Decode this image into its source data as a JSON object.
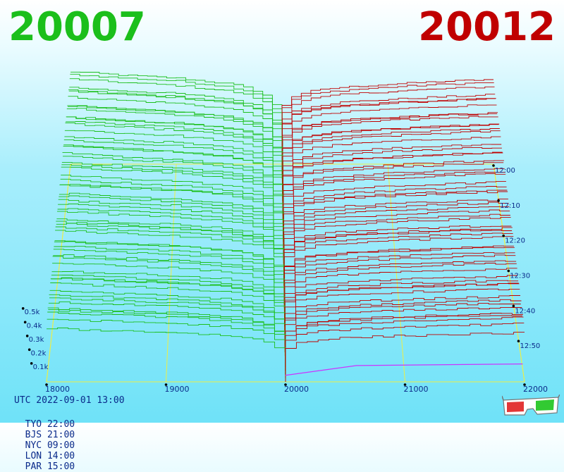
{
  "chart_data": {
    "type": "line",
    "title_left": "20007",
    "title_right": "20012",
    "colors": {
      "bid": "#1bbf1b",
      "ask": "#c00000",
      "spread": "#cc33ff",
      "grid": "#eeee44"
    },
    "x_ticks": [
      "18000",
      "19000",
      "20000",
      "21000",
      "22000"
    ],
    "depth_ticks": [
      "0.1k",
      "0.2k",
      "0.3k",
      "0.4k",
      "0.5k"
    ],
    "time_ticks": [
      "12:00",
      "12:10",
      "12:20",
      "12:30",
      "12:40",
      "12:50"
    ],
    "xlim": [
      18000,
      22000
    ],
    "depth_lim": [
      0,
      500
    ],
    "time_range": [
      "12:00",
      "12:58"
    ],
    "series": [
      {
        "side": "bid",
        "x": [
          18000,
          18500,
          19000,
          19500,
          19700,
          19900,
          20000
        ],
        "cumulative_depth": [
          1280,
          1230,
          1190,
          1110,
          1040,
          900,
          0
        ]
      },
      {
        "side": "ask",
        "x": [
          20000,
          20100,
          20300,
          20600,
          21000,
          21500,
          22000
        ],
        "cumulative_depth": [
          0,
          900,
          1000,
          1060,
          1100,
          1140,
          1170
        ]
      }
    ]
  },
  "footer": {
    "utc": "UTC 2022-09-01 13:00",
    "zones": [
      "TYO 22:00",
      "BJS 21:00",
      "NYC 09:00",
      "LON 14:00",
      "PAR 15:00"
    ]
  },
  "glasses_icon": "anaglyph-3d-glasses-icon"
}
